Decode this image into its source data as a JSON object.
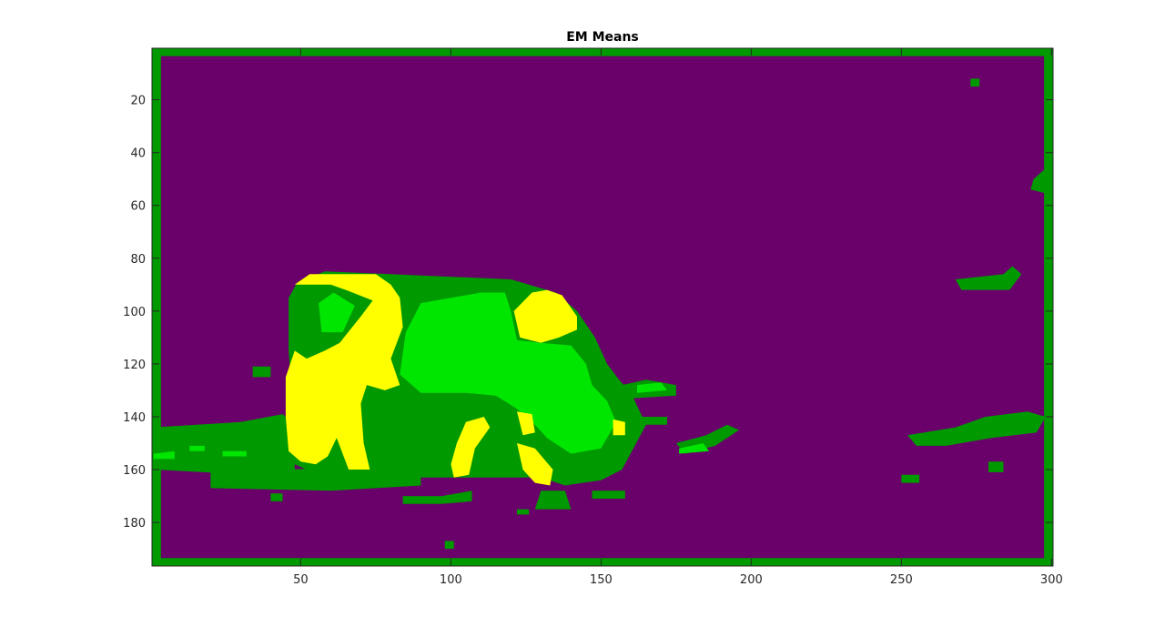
{
  "chart_data": {
    "type": "heatmap",
    "title": "EM Means",
    "xlabel": "",
    "ylabel": "",
    "xlim": [
      0.5,
      300.5
    ],
    "ylim": [
      196.5,
      0.5
    ],
    "y_reversed": true,
    "grid": false,
    "legend": "none",
    "x_ticks": [
      50,
      100,
      150,
      200,
      250,
      300
    ],
    "y_ticks": [
      20,
      40,
      60,
      80,
      100,
      120,
      140,
      160,
      180
    ],
    "x_tick_labels": [
      "50",
      "100",
      "150",
      "200",
      "250",
      "300"
    ],
    "y_tick_labels": [
      "20",
      "40",
      "60",
      "80",
      "100",
      "120",
      "140",
      "160",
      "180"
    ],
    "cluster_colors": {
      "background": "#6a006a",
      "edge": "#009900",
      "body": "#00e600",
      "highlight": "#ffff00"
    },
    "regions": [
      {
        "cluster": "edge",
        "shape": "rect",
        "points": [
          [
            1,
            1
          ],
          [
            300,
            3
          ]
        ]
      },
      {
        "cluster": "edge",
        "shape": "rect",
        "points": [
          [
            1,
            194
          ],
          [
            300,
            196
          ]
        ]
      },
      {
        "cluster": "edge",
        "shape": "rect",
        "points": [
          [
            1,
            1
          ],
          [
            3,
            196
          ]
        ]
      },
      {
        "cluster": "edge",
        "shape": "rect",
        "points": [
          [
            298,
            1
          ],
          [
            300,
            196
          ]
        ]
      },
      {
        "cluster": "edge",
        "shape": "poly",
        "points": [
          [
            1,
            144
          ],
          [
            30,
            142
          ],
          [
            44,
            139
          ],
          [
            48,
            143
          ],
          [
            48,
            160
          ],
          [
            35,
            162
          ],
          [
            1,
            160
          ]
        ]
      },
      {
        "cluster": "edge",
        "shape": "poly",
        "points": [
          [
            20,
            161
          ],
          [
            70,
            159
          ],
          [
            82,
            162
          ],
          [
            90,
            162
          ],
          [
            90,
            166
          ],
          [
            60,
            168
          ],
          [
            20,
            167
          ]
        ]
      },
      {
        "cluster": "edge",
        "shape": "poly",
        "points": [
          [
            49,
            89
          ],
          [
            58,
            85
          ],
          [
            80,
            86
          ],
          [
            120,
            88
          ],
          [
            135,
            93
          ],
          [
            142,
            100
          ],
          [
            148,
            110
          ],
          [
            152,
            120
          ],
          [
            156,
            126
          ],
          [
            160,
            131
          ],
          [
            165,
            143
          ],
          [
            157,
            160
          ],
          [
            150,
            164
          ],
          [
            138,
            166
          ],
          [
            130,
            163
          ],
          [
            120,
            163
          ],
          [
            110,
            163
          ],
          [
            100,
            163
          ],
          [
            82,
            163
          ],
          [
            65,
            162
          ],
          [
            52,
            160
          ],
          [
            46,
            157
          ],
          [
            46,
            145
          ],
          [
            47,
            130
          ],
          [
            46,
            115
          ],
          [
            46,
            95
          ]
        ]
      },
      {
        "cluster": "edge",
        "shape": "poly",
        "points": [
          [
            157,
            128
          ],
          [
            165,
            126
          ],
          [
            175,
            128
          ],
          [
            175,
            132
          ],
          [
            160,
            133
          ]
        ]
      },
      {
        "cluster": "edge",
        "shape": "poly",
        "points": [
          [
            160,
            140
          ],
          [
            172,
            140
          ],
          [
            172,
            143
          ],
          [
            160,
            143
          ]
        ]
      },
      {
        "cluster": "edge",
        "shape": "poly",
        "points": [
          [
            175,
            150
          ],
          [
            185,
            147
          ],
          [
            192,
            143
          ],
          [
            196,
            145
          ],
          [
            188,
            151
          ],
          [
            178,
            154
          ]
        ]
      },
      {
        "cluster": "edge",
        "shape": "poly",
        "points": [
          [
            268,
            88
          ],
          [
            284,
            86
          ],
          [
            287,
            83
          ],
          [
            290,
            86
          ],
          [
            286,
            92
          ],
          [
            270,
            92
          ]
        ]
      },
      {
        "cluster": "edge",
        "shape": "poly",
        "points": [
          [
            252,
            147
          ],
          [
            268,
            144
          ],
          [
            278,
            140
          ],
          [
            292,
            138
          ],
          [
            298,
            140
          ],
          [
            295,
            146
          ],
          [
            280,
            148
          ],
          [
            265,
            151
          ],
          [
            255,
            151
          ]
        ]
      },
      {
        "cluster": "edge",
        "shape": "poly",
        "points": [
          [
            294,
            50
          ],
          [
            298,
            46
          ],
          [
            300,
            56
          ],
          [
            293,
            54
          ]
        ]
      },
      {
        "cluster": "edge",
        "shape": "poly",
        "points": [
          [
            84,
            170
          ],
          [
            97,
            170
          ],
          [
            97,
            173
          ],
          [
            84,
            173
          ]
        ]
      },
      {
        "cluster": "edge",
        "shape": "poly",
        "points": [
          [
            97,
            170
          ],
          [
            107,
            168
          ],
          [
            107,
            172
          ],
          [
            97,
            173
          ]
        ]
      },
      {
        "cluster": "edge",
        "shape": "poly",
        "points": [
          [
            130,
            168
          ],
          [
            138,
            168
          ],
          [
            140,
            175
          ],
          [
            128,
            175
          ]
        ]
      },
      {
        "cluster": "edge",
        "shape": "poly",
        "points": [
          [
            147,
            168
          ],
          [
            158,
            168
          ],
          [
            158,
            171
          ],
          [
            147,
            171
          ]
        ]
      },
      {
        "cluster": "edge",
        "shape": "poly",
        "points": [
          [
            34,
            121
          ],
          [
            40,
            121
          ],
          [
            40,
            125
          ],
          [
            34,
            125
          ]
        ]
      },
      {
        "cluster": "edge",
        "shape": "poly",
        "points": [
          [
            250,
            162
          ],
          [
            256,
            162
          ],
          [
            256,
            165
          ],
          [
            250,
            165
          ]
        ]
      },
      {
        "cluster": "edge",
        "shape": "poly",
        "points": [
          [
            279,
            157
          ],
          [
            284,
            157
          ],
          [
            284,
            161
          ],
          [
            279,
            161
          ]
        ]
      },
      {
        "cluster": "edge",
        "shape": "poly",
        "points": [
          [
            98,
            187
          ],
          [
            101,
            187
          ],
          [
            101,
            190
          ],
          [
            98,
            190
          ]
        ]
      },
      {
        "cluster": "edge",
        "shape": "poly",
        "points": [
          [
            273,
            12
          ],
          [
            276,
            12
          ],
          [
            276,
            15
          ],
          [
            273,
            15
          ]
        ]
      },
      {
        "cluster": "edge",
        "shape": "poly",
        "points": [
          [
            40,
            169
          ],
          [
            44,
            169
          ],
          [
            44,
            172
          ],
          [
            40,
            172
          ]
        ]
      },
      {
        "cluster": "edge",
        "shape": "poly",
        "points": [
          [
            122,
            175
          ],
          [
            126,
            175
          ],
          [
            126,
            177
          ],
          [
            122,
            177
          ]
        ]
      },
      {
        "cluster": "body",
        "shape": "poly",
        "points": [
          [
            56,
            97
          ],
          [
            61,
            93
          ],
          [
            68,
            98
          ],
          [
            64,
            108
          ],
          [
            57,
            108
          ]
        ]
      },
      {
        "cluster": "body",
        "shape": "poly",
        "points": [
          [
            85,
            108
          ],
          [
            90,
            97
          ],
          [
            110,
            93
          ],
          [
            118,
            93
          ],
          [
            120,
            100
          ],
          [
            122,
            111
          ],
          [
            130,
            112
          ],
          [
            140,
            113
          ],
          [
            145,
            120
          ],
          [
            147,
            128
          ],
          [
            152,
            134
          ],
          [
            155,
            142
          ],
          [
            150,
            152
          ],
          [
            140,
            154
          ],
          [
            132,
            148
          ],
          [
            128,
            143
          ],
          [
            122,
            137
          ],
          [
            115,
            132
          ],
          [
            105,
            131
          ],
          [
            90,
            131
          ],
          [
            83,
            124
          ]
        ]
      },
      {
        "cluster": "body",
        "shape": "poly",
        "points": [
          [
            1,
            154
          ],
          [
            8,
            153
          ],
          [
            8,
            156
          ],
          [
            1,
            156
          ]
        ]
      },
      {
        "cluster": "body",
        "shape": "poly",
        "points": [
          [
            13,
            151
          ],
          [
            18,
            151
          ],
          [
            18,
            153
          ],
          [
            13,
            153
          ]
        ]
      },
      {
        "cluster": "body",
        "shape": "poly",
        "points": [
          [
            24,
            153
          ],
          [
            32,
            153
          ],
          [
            32,
            155
          ],
          [
            24,
            155
          ]
        ]
      },
      {
        "cluster": "body",
        "shape": "poly",
        "points": [
          [
            176,
            152
          ],
          [
            184,
            150
          ],
          [
            186,
            153
          ],
          [
            176,
            154
          ]
        ]
      },
      {
        "cluster": "body",
        "shape": "poly",
        "points": [
          [
            162,
            128
          ],
          [
            170,
            127
          ],
          [
            172,
            130
          ],
          [
            162,
            131
          ]
        ]
      },
      {
        "cluster": "highlight",
        "shape": "poly",
        "points": [
          [
            48,
            90
          ],
          [
            53,
            86
          ],
          [
            62,
            86
          ],
          [
            75,
            86
          ],
          [
            80,
            90
          ],
          [
            83,
            95
          ],
          [
            84,
            106
          ],
          [
            80,
            118
          ],
          [
            83,
            128
          ],
          [
            78,
            130
          ],
          [
            72,
            128
          ],
          [
            70,
            135
          ],
          [
            71,
            150
          ],
          [
            73,
            160
          ],
          [
            66,
            160
          ],
          [
            62,
            148
          ],
          [
            59,
            155
          ],
          [
            55,
            158
          ],
          [
            50,
            157
          ],
          [
            46,
            153
          ],
          [
            45,
            140
          ],
          [
            45,
            125
          ],
          [
            48,
            115
          ],
          [
            52,
            118
          ],
          [
            58,
            115
          ],
          [
            63,
            112
          ],
          [
            70,
            102
          ],
          [
            74,
            96
          ],
          [
            65,
            92
          ],
          [
            60,
            90
          ],
          [
            54,
            90
          ]
        ]
      },
      {
        "cluster": "highlight",
        "shape": "poly",
        "points": [
          [
            121,
            100
          ],
          [
            127,
            93
          ],
          [
            132,
            92
          ],
          [
            137,
            94
          ],
          [
            142,
            102
          ],
          [
            142,
            107
          ],
          [
            136,
            110
          ],
          [
            130,
            112
          ],
          [
            123,
            110
          ]
        ]
      },
      {
        "cluster": "highlight",
        "shape": "poly",
        "points": [
          [
            105,
            142
          ],
          [
            111,
            140
          ],
          [
            113,
            144
          ],
          [
            108,
            152
          ],
          [
            106,
            162
          ],
          [
            101,
            163
          ],
          [
            100,
            158
          ],
          [
            102,
            150
          ]
        ]
      },
      {
        "cluster": "highlight",
        "shape": "poly",
        "points": [
          [
            122,
            138
          ],
          [
            127,
            139
          ],
          [
            128,
            146
          ],
          [
            124,
            147
          ]
        ]
      },
      {
        "cluster": "highlight",
        "shape": "poly",
        "points": [
          [
            122,
            150
          ],
          [
            128,
            152
          ],
          [
            134,
            160
          ],
          [
            133,
            166
          ],
          [
            128,
            165
          ],
          [
            124,
            160
          ]
        ]
      },
      {
        "cluster": "highlight",
        "shape": "poly",
        "points": [
          [
            154,
            141
          ],
          [
            158,
            142
          ],
          [
            158,
            147
          ],
          [
            154,
            147
          ]
        ]
      }
    ]
  }
}
